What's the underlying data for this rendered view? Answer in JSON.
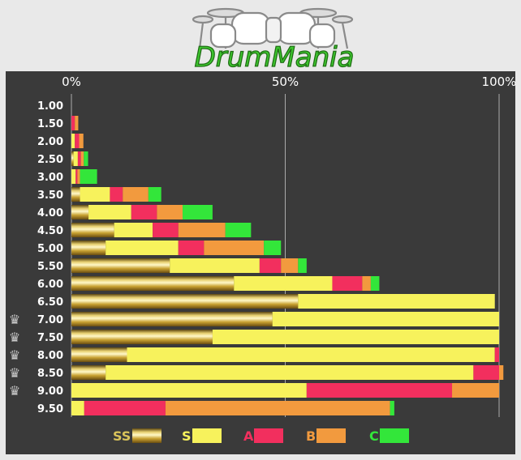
{
  "logo": {
    "text": "DrumMania"
  },
  "colors": {
    "ss": "#c8a83a",
    "s": "#f7f25c",
    "a": "#f22f5e",
    "b": "#f29a3e",
    "c": "#33e63a"
  },
  "chart_data": {
    "type": "bar",
    "orientation": "horizontal",
    "stacked": true,
    "x_ticks": [
      "0%",
      "50%",
      "100%"
    ],
    "xlim": [
      0,
      100
    ],
    "grid": true,
    "legend_position": "bottom",
    "categories": [
      "1.00",
      "1.50",
      "2.00",
      "2.50",
      "3.00",
      "3.50",
      "4.00",
      "4.50",
      "5.00",
      "5.50",
      "6.00",
      "6.50",
      "7.00",
      "7.50",
      "8.00",
      "8.50",
      "9.00",
      "9.50"
    ],
    "crowned": [
      "7.00",
      "7.50",
      "8.00",
      "8.50",
      "9.00"
    ],
    "series": [
      {
        "name": "SS",
        "color": "#c8a83a",
        "values": [
          0,
          0,
          0,
          0.5,
          0,
          2,
          4,
          10,
          8,
          23,
          38,
          53,
          47,
          33,
          13,
          8,
          0,
          0
        ]
      },
      {
        "name": "S",
        "color": "#f7f25c",
        "values": [
          0,
          0,
          0.8,
          1,
          1,
          7,
          10,
          9,
          17,
          21,
          23,
          46,
          53,
          67,
          86,
          86,
          55,
          3
        ]
      },
      {
        "name": "A",
        "color": "#f22f5e",
        "values": [
          0,
          0.8,
          1,
          0.7,
          0.4,
          3,
          6,
          6,
          6,
          5,
          7,
          0,
          0,
          0,
          1,
          6,
          34,
          19
        ]
      },
      {
        "name": "B",
        "color": "#f29a3e",
        "values": [
          0,
          0.8,
          1,
          0.7,
          0.6,
          6,
          6,
          11,
          14,
          4,
          2,
          0,
          0,
          0,
          0,
          1,
          11,
          52.5
        ]
      },
      {
        "name": "C",
        "color": "#33e63a",
        "values": [
          0,
          0,
          0,
          1,
          4,
          3,
          7,
          6,
          4,
          2,
          2,
          0,
          0,
          0,
          0,
          0,
          0,
          1
        ]
      }
    ]
  }
}
